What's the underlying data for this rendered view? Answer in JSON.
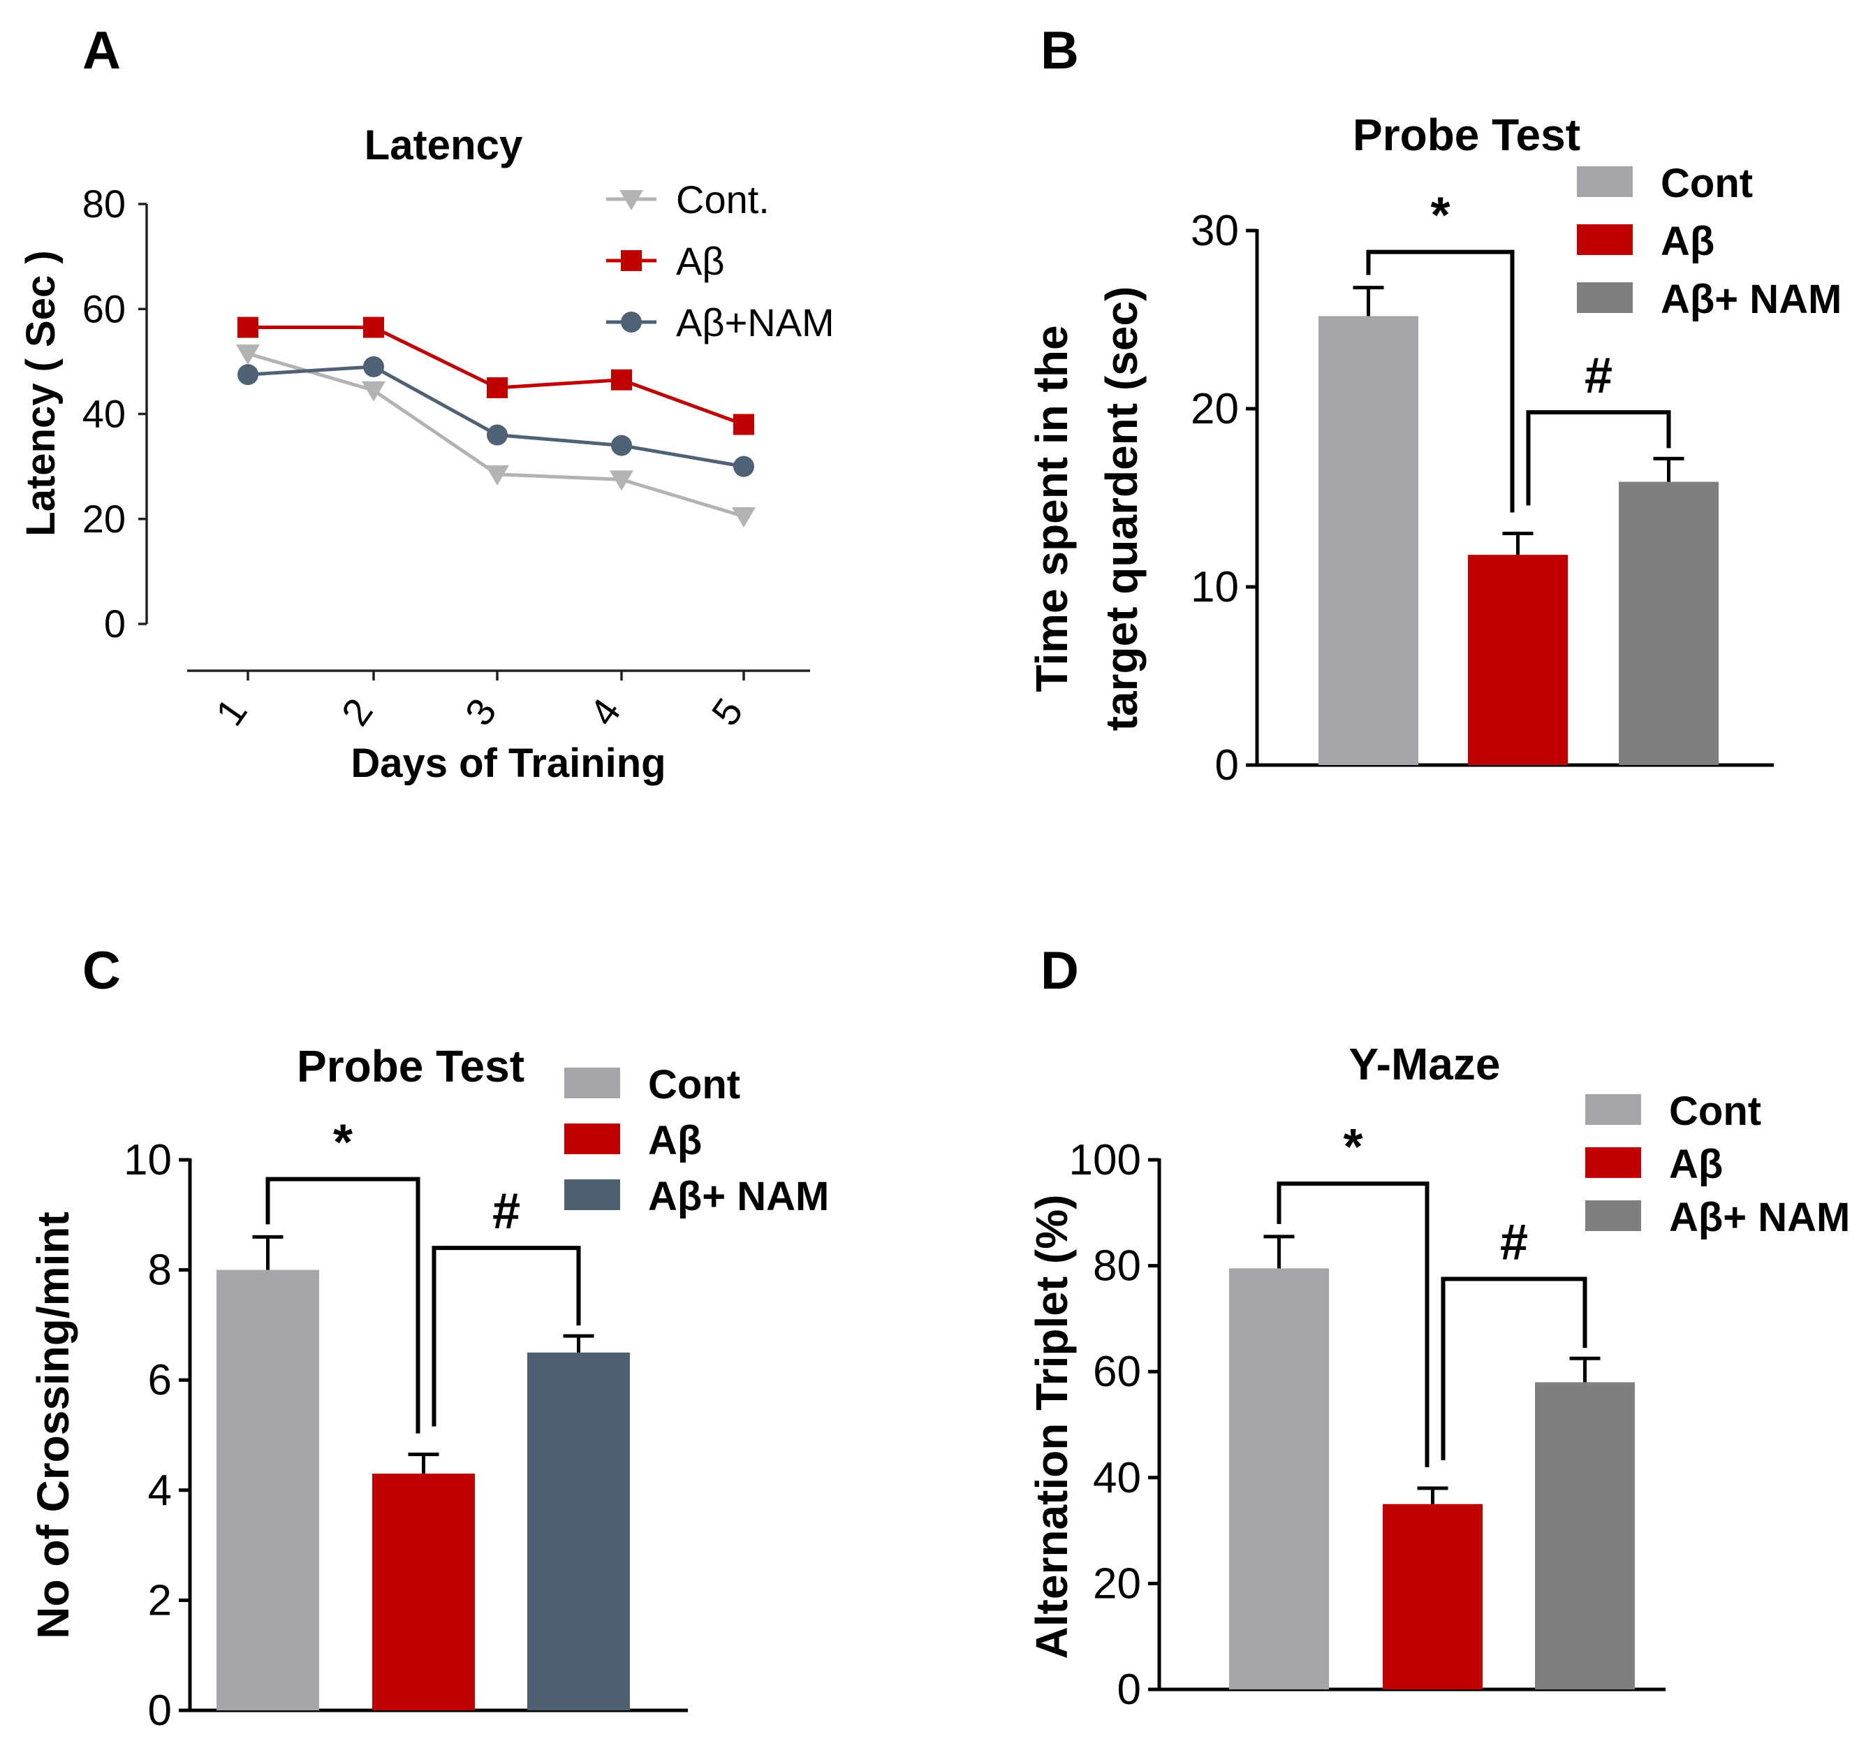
{
  "panels": {
    "a": {
      "letter": "A"
    },
    "b": {
      "letter": "B"
    },
    "c": {
      "letter": "C"
    },
    "d": {
      "letter": "D"
    }
  },
  "chart_data": [
    {
      "panel": "A",
      "type": "line",
      "title": "Latency",
      "xlabel": "Days of Training",
      "ylabel": "Latency ( Sec )",
      "x": [
        "1",
        "2",
        "3",
        "4",
        "5"
      ],
      "ylim": [
        0,
        80
      ],
      "yticks": [
        "0",
        "20",
        "40",
        "60",
        "80"
      ],
      "legend_position": "top-right",
      "series": [
        {
          "name": "Cont.",
          "color": "#b3b3b3",
          "marker": "triangle-down",
          "values": [
            51.5,
            44.5,
            28.5,
            27.5,
            20.5
          ]
        },
        {
          "name": "Aβ",
          "color": "#c00000",
          "marker": "square",
          "values": [
            56.5,
            56.5,
            45.0,
            46.5,
            38.0
          ]
        },
        {
          "name": "Aβ+NAM",
          "color": "#4f6275",
          "marker": "circle",
          "values": [
            47.5,
            49.0,
            36.0,
            34.0,
            30.0
          ]
        }
      ]
    },
    {
      "panel": "B",
      "type": "bar",
      "title": "Probe Test",
      "ylabel": "Time spent in the target quardent (sec)",
      "ylabel_lines": [
        "Time spent in the",
        "target quardent (sec)"
      ],
      "categories": [
        "Cont",
        "Aβ",
        "Aβ+ NAM"
      ],
      "values": [
        25.2,
        11.8,
        15.9
      ],
      "errors": [
        1.6,
        1.2,
        1.3
      ],
      "colors": [
        "#a6a6aa",
        "#c00000",
        "#7f7f7f"
      ],
      "ylim": [
        0,
        30
      ],
      "yticks": [
        "0",
        "10",
        "20",
        "30"
      ],
      "legend_position": "top-right",
      "significance": [
        {
          "label": "*",
          "from": 0,
          "to": 1,
          "level": 28.8
        },
        {
          "label": "#",
          "from": 1,
          "to": 2,
          "level": 19.8
        }
      ]
    },
    {
      "panel": "C",
      "type": "bar",
      "title": "Probe Test",
      "ylabel": "No of Crossing/mint",
      "categories": [
        "Cont",
        "Aβ",
        "Aβ+ NAM"
      ],
      "legend_labels": [
        "Cont",
        " Aβ",
        "Aβ+ NAM"
      ],
      "values": [
        8.0,
        4.3,
        6.5
      ],
      "errors": [
        0.6,
        0.35,
        0.3
      ],
      "colors": [
        "#a6a6aa",
        "#c00000",
        "#4e5f70"
      ],
      "ylim": [
        0,
        10
      ],
      "yticks": [
        "0",
        "2",
        "4",
        "6",
        "8",
        "10"
      ],
      "legend_position": "top-right",
      "significance": [
        {
          "label": "*",
          "from": 0,
          "to": 1,
          "level": 9.65
        },
        {
          "label": "#",
          "from": 1,
          "to": 2,
          "level": 8.4
        }
      ]
    },
    {
      "panel": "D",
      "type": "bar",
      "title": "Y-Maze",
      "ylabel": "Alternation Triplet (%)",
      "categories": [
        "Cont",
        "Aβ",
        "Aβ+ NAM"
      ],
      "values": [
        79.5,
        35.0,
        58.0
      ],
      "errors": [
        6.0,
        3.0,
        4.5
      ],
      "colors": [
        "#a6a6aa",
        "#c00000",
        "#7f7f7f"
      ],
      "ylim": [
        0,
        100
      ],
      "yticks": [
        "0",
        "20",
        "40",
        "60",
        "80",
        "100"
      ],
      "legend_position": "top-right",
      "significance": [
        {
          "label": "*",
          "from": 0,
          "to": 1,
          "level": 95.5
        },
        {
          "label": "#",
          "from": 1,
          "to": 2,
          "level": 77.5
        }
      ]
    }
  ]
}
